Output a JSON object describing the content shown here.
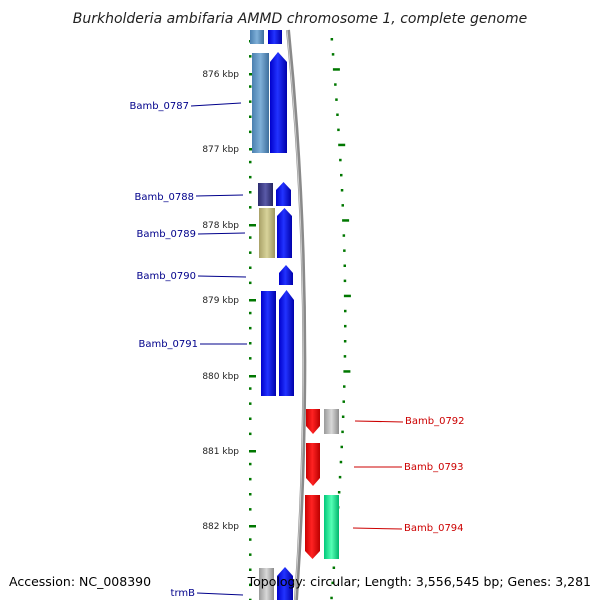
{
  "title": "Burkholderia ambifaria AMMD chromosome 1, complete genome",
  "accession_text": "Accession: NC_008390",
  "summary_text": "Topology: circular; Length: 3,556,545 bp; Genes: 3,281",
  "ruler": [
    {
      "label": "876 kbp",
      "kbp": 876
    },
    {
      "label": "877 kbp",
      "kbp": 877
    },
    {
      "label": "878 kbp",
      "kbp": 878
    },
    {
      "label": "879 kbp",
      "kbp": 879
    },
    {
      "label": "880 kbp",
      "kbp": 880
    },
    {
      "label": "881 kbp",
      "kbp": 881
    },
    {
      "label": "882 kbp",
      "kbp": 882
    }
  ],
  "genes": [
    {
      "name": "Bamb_0787",
      "strand": "forward",
      "color": "#00008b"
    },
    {
      "name": "Bamb_0788",
      "strand": "forward",
      "color": "#00008b"
    },
    {
      "name": "Bamb_0789",
      "strand": "forward",
      "color": "#00008b"
    },
    {
      "name": "Bamb_0790",
      "strand": "forward",
      "color": "#00008b"
    },
    {
      "name": "Bamb_0791",
      "strand": "forward",
      "color": "#00008b"
    },
    {
      "name": "Bamb_0792",
      "strand": "reverse",
      "color": "#cc0000"
    },
    {
      "name": "Bamb_0793",
      "strand": "reverse",
      "color": "#cc0000"
    },
    {
      "name": "Bamb_0794",
      "strand": "reverse",
      "color": "#cc0000"
    },
    {
      "name": "trmB",
      "strand": "forward",
      "color": "#00008b"
    }
  ],
  "colors": {
    "forward_cds": "#0000ee",
    "reverse_cds": "#ee0000",
    "tick": "#007700",
    "backbone": "#888888"
  }
}
